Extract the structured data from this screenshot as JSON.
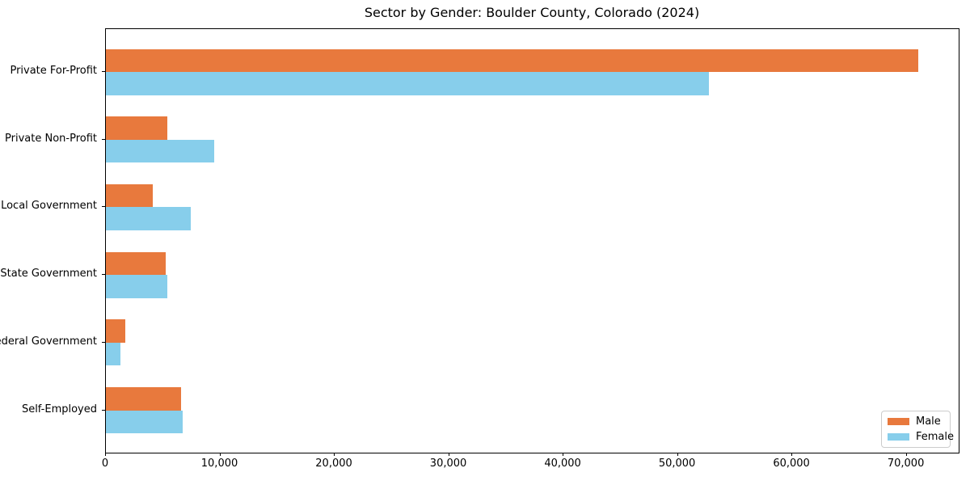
{
  "chart_data": {
    "type": "bar",
    "orientation": "horizontal",
    "title": "Sector by Gender: Boulder County, Colorado (2024)",
    "xlabel": "",
    "ylabel": "",
    "categories": [
      "Private For-Profit",
      "Private Non-Profit",
      "Local Government",
      "State Government",
      "Federal Government",
      "Self-Employed"
    ],
    "series": [
      {
        "name": "Male",
        "color": "#E8793D",
        "values": [
          71000,
          5400,
          4100,
          5200,
          1700,
          6600
        ]
      },
      {
        "name": "Female",
        "color": "#87CEEB",
        "values": [
          52700,
          9500,
          7400,
          5400,
          1300,
          6700
        ]
      }
    ],
    "xlim": [
      0,
      74550
    ],
    "x_ticks": [
      0,
      10000,
      20000,
      30000,
      40000,
      50000,
      60000,
      70000
    ],
    "x_tick_labels": [
      "0",
      "10,000",
      "20,000",
      "30,000",
      "40,000",
      "50,000",
      "60,000",
      "70,000"
    ],
    "legend_position": "lower right",
    "grid": false,
    "spine_color": "#000000",
    "background_color": "#ffffff"
  }
}
